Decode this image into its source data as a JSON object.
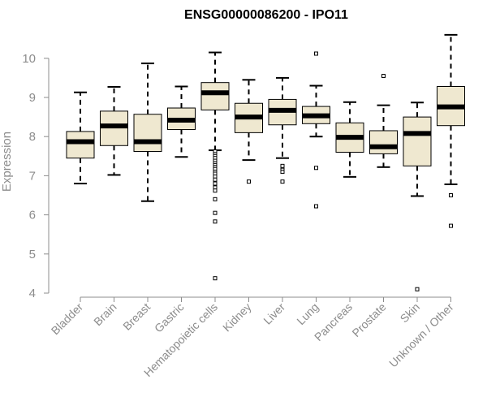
{
  "chart_data": {
    "type": "box",
    "title": "ENSG00000086200 - IPO11",
    "xlabel": "",
    "ylabel": "Expression",
    "ylim": [
      4,
      10.6
    ],
    "yticks": [
      4,
      5,
      6,
      7,
      8,
      9,
      10
    ],
    "grid": false,
    "legend": "none",
    "colors": {
      "box_fill": "#efe8d0",
      "box_stroke": "#000000",
      "median": "#000000",
      "axis": "#8c8c8c"
    },
    "categories": [
      "Bladder",
      "Brain",
      "Breast",
      "Gastric",
      "Hematopoietic cells",
      "Kidney",
      "Liver",
      "Lung",
      "Pancreas",
      "Prostate",
      "Skin",
      "Unknown / Other"
    ],
    "boxes": [
      {
        "category": "Bladder",
        "whisker_low": 6.8,
        "q1": 7.45,
        "median": 7.87,
        "q3": 8.13,
        "whisker_high": 9.13,
        "outliers": []
      },
      {
        "category": "Brain",
        "whisker_low": 7.02,
        "q1": 7.77,
        "median": 8.27,
        "q3": 8.65,
        "whisker_high": 9.27,
        "outliers": []
      },
      {
        "category": "Breast",
        "whisker_low": 6.35,
        "q1": 7.62,
        "median": 7.87,
        "q3": 8.57,
        "whisker_high": 9.87,
        "outliers": []
      },
      {
        "category": "Gastric",
        "whisker_low": 7.48,
        "q1": 8.18,
        "median": 8.42,
        "q3": 8.73,
        "whisker_high": 9.28,
        "outliers": []
      },
      {
        "category": "Hematopoietic cells",
        "whisker_low": 7.65,
        "q1": 8.68,
        "median": 9.12,
        "q3": 9.38,
        "whisker_high": 10.15,
        "outliers": [
          7.62,
          7.55,
          7.5,
          7.45,
          7.38,
          7.32,
          7.27,
          7.22,
          7.17,
          7.1,
          7.05,
          6.98,
          6.9,
          6.8,
          6.7,
          6.62,
          6.4,
          6.05,
          5.83,
          4.38
        ]
      },
      {
        "category": "Kidney",
        "whisker_low": 7.4,
        "q1": 8.1,
        "median": 8.5,
        "q3": 8.85,
        "whisker_high": 9.45,
        "outliers": [
          6.85
        ]
      },
      {
        "category": "Liver",
        "whisker_low": 7.45,
        "q1": 8.3,
        "median": 8.67,
        "q3": 8.95,
        "whisker_high": 9.5,
        "outliers": [
          7.25,
          7.15,
          7.1,
          6.85
        ]
      },
      {
        "category": "Lung",
        "whisker_low": 8.0,
        "q1": 8.33,
        "median": 8.53,
        "q3": 8.77,
        "whisker_high": 9.3,
        "outliers": [
          10.12,
          7.2,
          6.22
        ]
      },
      {
        "category": "Pancreas",
        "whisker_low": 6.97,
        "q1": 7.6,
        "median": 7.98,
        "q3": 8.35,
        "whisker_high": 8.88,
        "outliers": []
      },
      {
        "category": "Prostate",
        "whisker_low": 7.22,
        "q1": 7.56,
        "median": 7.74,
        "q3": 8.15,
        "whisker_high": 8.8,
        "outliers": [
          9.55
        ]
      },
      {
        "category": "Skin",
        "whisker_low": 6.48,
        "q1": 7.25,
        "median": 8.08,
        "q3": 8.5,
        "whisker_high": 8.87,
        "outliers": [
          4.1
        ]
      },
      {
        "category": "Unknown / Other",
        "whisker_low": 6.78,
        "q1": 8.28,
        "median": 8.76,
        "q3": 9.28,
        "whisker_high": 10.6,
        "outliers": [
          6.5,
          5.72
        ]
      }
    ]
  }
}
